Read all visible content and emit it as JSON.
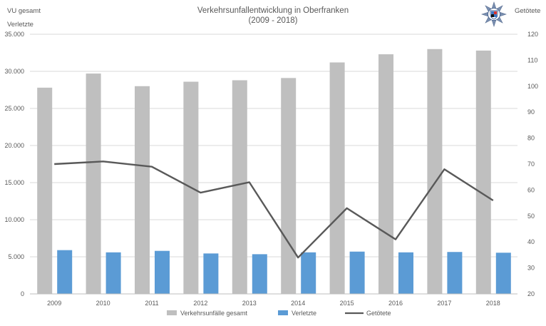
{
  "chart_data": {
    "type": "bar",
    "title": "Verkehrsunfallentwicklung in Oberfranken",
    "subtitle": "(2009 - 2018)",
    "ylabel_left_top": "VU gesamt",
    "ylabel_left": "Verletzte",
    "ylabel_right": "Getötete",
    "categories": [
      "2009",
      "2010",
      "2011",
      "2012",
      "2013",
      "2014",
      "2015",
      "2016",
      "2017",
      "2018"
    ],
    "ylim_left": [
      0,
      35000
    ],
    "ylim_right": [
      20,
      120
    ],
    "yticks_left": [
      "0",
      "5.000",
      "10.000",
      "15.000",
      "20.000",
      "25.000",
      "30.000",
      "35.000"
    ],
    "yticks_right": [
      "20",
      "30",
      "40",
      "50",
      "60",
      "70",
      "80",
      "90",
      "100",
      "110",
      "120"
    ],
    "grid": true,
    "legend_position": "bottom",
    "series": [
      {
        "name": "Verkehrsunfälle gesamt",
        "kind": "bar",
        "axis": "left",
        "color": "#bfbfbf",
        "values": [
          27800,
          29700,
          28000,
          28600,
          28800,
          29100,
          31200,
          32300,
          33000,
          32800
        ]
      },
      {
        "name": "Verletzte",
        "kind": "bar",
        "axis": "left",
        "color": "#5b9bd5",
        "values": [
          5900,
          5600,
          5800,
          5450,
          5350,
          5600,
          5700,
          5600,
          5650,
          5550
        ]
      },
      {
        "name": "Getötete",
        "kind": "line",
        "axis": "right",
        "color": "#595959",
        "values": [
          70,
          71,
          69,
          59,
          63,
          34,
          53,
          41,
          68,
          56
        ]
      }
    ]
  },
  "logo": {
    "name": "polizei-bayern-star-logo"
  }
}
